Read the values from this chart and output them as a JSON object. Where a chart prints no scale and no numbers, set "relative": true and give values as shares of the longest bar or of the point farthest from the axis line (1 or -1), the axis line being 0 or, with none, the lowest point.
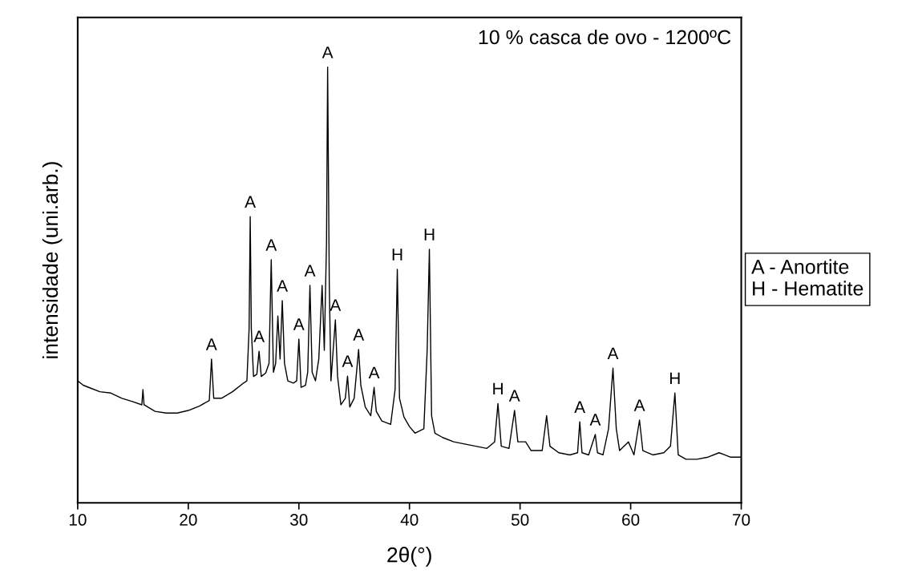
{
  "chart_data": {
    "type": "line",
    "relative": true,
    "title": "10 % casca de ovo - 1200ºC",
    "xlabel": "2θ(°)",
    "ylabel": "intensidade (uni.arb.)",
    "xlim": [
      10,
      70
    ],
    "xticks": [
      10,
      20,
      30,
      40,
      50,
      60,
      70
    ],
    "tick_labels": "x",
    "grid": false,
    "legend": false,
    "series": [
      {
        "color": "#000000",
        "x": [
          10,
          10.5,
          11,
          12,
          13,
          14,
          15,
          15.8,
          15.9,
          16,
          17,
          18,
          19,
          20,
          21,
          21.9,
          22.1,
          22.3,
          23,
          24,
          25,
          25.3,
          25.5,
          25.6,
          25.7,
          25.9,
          26.2,
          26.4,
          26.6,
          27.0,
          27.3,
          27.5,
          27.7,
          27.9,
          28.1,
          28.3,
          28.5,
          28.7,
          29.0,
          29.5,
          29.8,
          30.0,
          30.2,
          30.6,
          30.8,
          31.0,
          31.2,
          31.5,
          31.8,
          32.1,
          32.3,
          32.5,
          32.6,
          32.75,
          32.9,
          33.1,
          33.3,
          33.5,
          33.8,
          34.2,
          34.4,
          34.6,
          35.0,
          35.4,
          35.6,
          36.0,
          36.5,
          36.8,
          37.0,
          37.5,
          38.3,
          38.7,
          38.9,
          39.1,
          39.5,
          40,
          40.5,
          41.3,
          41.6,
          41.8,
          42.0,
          42.3,
          43,
          44,
          45,
          46,
          47,
          47.7,
          48.0,
          48.3,
          49,
          49.5,
          49.8,
          50.5,
          51,
          52,
          52.4,
          52.7,
          53.5,
          54.5,
          55.2,
          55.4,
          55.6,
          56.2,
          56.8,
          57.0,
          57.5,
          58.0,
          58.4,
          58.7,
          59.0,
          59.8,
          60.3,
          60.8,
          61.1,
          62,
          63,
          63.6,
          64.0,
          64.3,
          65,
          66,
          67,
          68,
          68.5,
          69,
          70
        ],
        "values": [
          0.28,
          0.27,
          0.265,
          0.255,
          0.252,
          0.24,
          0.232,
          0.225,
          0.26,
          0.225,
          0.21,
          0.206,
          0.206,
          0.212,
          0.222,
          0.235,
          0.33,
          0.24,
          0.24,
          0.255,
          0.275,
          0.28,
          0.4,
          0.657,
          0.4,
          0.29,
          0.295,
          0.348,
          0.29,
          0.298,
          0.32,
          0.558,
          0.3,
          0.32,
          0.429,
          0.33,
          0.464,
          0.32,
          0.28,
          0.275,
          0.28,
          0.376,
          0.265,
          0.27,
          0.3,
          0.499,
          0.3,
          0.28,
          0.33,
          0.499,
          0.35,
          0.6,
          1,
          0.5,
          0.28,
          0.35,
          0.42,
          0.29,
          0.225,
          0.24,
          0.291,
          0.22,
          0.24,
          0.352,
          0.27,
          0.22,
          0.2,
          0.265,
          0.21,
          0.188,
          0.18,
          0.26,
          0.536,
          0.24,
          0.197,
          0.175,
          0.16,
          0.17,
          0.35,
          0.582,
          0.2,
          0.16,
          0.15,
          0.14,
          0.135,
          0.13,
          0.125,
          0.14,
          0.228,
          0.13,
          0.125,
          0.212,
          0.14,
          0.14,
          0.12,
          0.12,
          0.2,
          0.13,
          0.115,
          0.11,
          0.115,
          0.186,
          0.115,
          0.11,
          0.157,
          0.115,
          0.11,
          0.17,
          0.309,
          0.17,
          0.12,
          0.14,
          0.11,
          0.19,
          0.12,
          0.11,
          0.115,
          0.13,
          0.252,
          0.11,
          0.1,
          0.1,
          0.105,
          0.115,
          0.11,
          0.105,
          0.105
        ]
      }
    ],
    "annotations": [
      {
        "text": "A",
        "x": 22.1,
        "y": 0.33
      },
      {
        "text": "A",
        "x": 25.6,
        "y": 0.657
      },
      {
        "text": "A",
        "x": 26.4,
        "y": 0.348
      },
      {
        "text": "A",
        "x": 27.5,
        "y": 0.558
      },
      {
        "text": "A",
        "x": 28.5,
        "y": 0.464
      },
      {
        "text": "A",
        "x": 30.0,
        "y": 0.376
      },
      {
        "text": "A",
        "x": 31.0,
        "y": 0.499
      },
      {
        "text": "A",
        "x": 32.6,
        "y": 1
      },
      {
        "text": "A",
        "x": 33.3,
        "y": 0.42
      },
      {
        "text": "A",
        "x": 34.4,
        "y": 0.291
      },
      {
        "text": "A",
        "x": 35.4,
        "y": 0.352
      },
      {
        "text": "A",
        "x": 36.8,
        "y": 0.265
      },
      {
        "text": "H",
        "x": 38.9,
        "y": 0.536
      },
      {
        "text": "H",
        "x": 41.8,
        "y": 0.582
      },
      {
        "text": "H",
        "x": 48.0,
        "y": 0.228
      },
      {
        "text": "A",
        "x": 49.5,
        "y": 0.212
      },
      {
        "text": "A",
        "x": 55.4,
        "y": 0.186
      },
      {
        "text": "A",
        "x": 56.8,
        "y": 0.157
      },
      {
        "text": "A",
        "x": 58.4,
        "y": 0.309
      },
      {
        "text": "A",
        "x": 60.8,
        "y": 0.19
      },
      {
        "text": "H",
        "x": 64.0,
        "y": 0.252
      },
      "A - Anortite",
      "H - Hematite"
    ]
  }
}
